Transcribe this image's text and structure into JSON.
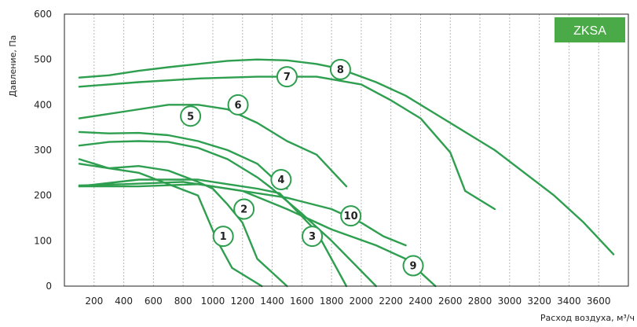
{
  "chart_data": {
    "type": "line",
    "ylabel": "Давление, Па",
    "xlabel": "Расход воздуха, м³/ч",
    "badge": "ZKSA",
    "line_color": "#2e9e4f",
    "badge_color": "#4aaa47",
    "xlim": [
      0,
      3800
    ],
    "ylim": [
      0,
      600
    ],
    "x_ticks": [
      200,
      400,
      600,
      800,
      1000,
      1200,
      1400,
      1600,
      1800,
      2000,
      2200,
      2400,
      2600,
      2800,
      3000,
      3200,
      3400,
      3600
    ],
    "y_ticks": [
      0,
      100,
      200,
      300,
      400,
      500,
      600
    ],
    "grid_vertical": true,
    "series": [
      {
        "name": "1",
        "marker": [
          1070,
          110
        ],
        "points": [
          [
            100,
            270
          ],
          [
            500,
            250
          ],
          [
            900,
            200
          ],
          [
            1030,
            100
          ],
          [
            1130,
            40
          ],
          [
            1330,
            0
          ]
        ]
      },
      {
        "name": "2",
        "marker": [
          1210,
          170
        ],
        "points": [
          [
            100,
            280
          ],
          [
            300,
            260
          ],
          [
            500,
            265
          ],
          [
            700,
            255
          ],
          [
            900,
            230
          ],
          [
            1000,
            215
          ],
          [
            1100,
            180
          ],
          [
            1200,
            140
          ],
          [
            1300,
            60
          ],
          [
            1500,
            0
          ]
        ]
      },
      {
        "name": "3",
        "marker": [
          1670,
          110
        ],
        "points": [
          [
            100,
            220
          ],
          [
            500,
            235
          ],
          [
            900,
            235
          ],
          [
            1100,
            225
          ],
          [
            1300,
            215
          ],
          [
            1450,
            205
          ],
          [
            1700,
            120
          ],
          [
            1900,
            0
          ]
        ]
      },
      {
        "name": "4",
        "marker": [
          1460,
          235
        ],
        "points": [
          [
            100,
            310
          ],
          [
            300,
            318
          ],
          [
            500,
            320
          ],
          [
            700,
            318
          ],
          [
            900,
            305
          ],
          [
            1100,
            280
          ],
          [
            1300,
            240
          ],
          [
            1400,
            215
          ],
          [
            1600,
            160
          ],
          [
            1800,
            100
          ],
          [
            2100,
            0
          ]
        ]
      },
      {
        "name": "5",
        "marker": [
          850,
          375
        ],
        "points": [
          [
            100,
            370
          ],
          [
            400,
            385
          ],
          [
            700,
            400
          ],
          [
            900,
            400
          ],
          [
            1100,
            390
          ],
          [
            1300,
            360
          ],
          [
            1500,
            320
          ],
          [
            1700,
            290
          ],
          [
            1900,
            220
          ]
        ]
      },
      {
        "name": "6",
        "marker": [
          1170,
          400
        ],
        "points": [
          [
            100,
            340
          ],
          [
            300,
            337
          ],
          [
            500,
            338
          ],
          [
            700,
            333
          ],
          [
            900,
            320
          ],
          [
            1100,
            300
          ],
          [
            1300,
            270
          ],
          [
            1400,
            240
          ],
          [
            1500,
            215
          ]
        ]
      },
      {
        "name": "7",
        "marker": [
          1500,
          462
        ],
        "points": [
          [
            100,
            440
          ],
          [
            500,
            450
          ],
          [
            900,
            458
          ],
          [
            1300,
            462
          ],
          [
            1700,
            462
          ],
          [
            2000,
            445
          ],
          [
            2200,
            410
          ],
          [
            2400,
            370
          ],
          [
            2600,
            295
          ],
          [
            2700,
            210
          ],
          [
            2900,
            170
          ]
        ]
      },
      {
        "name": "8",
        "marker": [
          1860,
          478
        ],
        "points": [
          [
            100,
            460
          ],
          [
            300,
            465
          ],
          [
            500,
            475
          ],
          [
            700,
            483
          ],
          [
            900,
            490
          ],
          [
            1100,
            497
          ],
          [
            1300,
            500
          ],
          [
            1500,
            498
          ],
          [
            1700,
            490
          ],
          [
            1850,
            480
          ],
          [
            2100,
            450
          ],
          [
            2300,
            420
          ],
          [
            2600,
            360
          ],
          [
            2900,
            300
          ],
          [
            3300,
            200
          ],
          [
            3500,
            140
          ],
          [
            3700,
            70
          ]
        ]
      },
      {
        "name": "9",
        "marker": [
          2350,
          45
        ],
        "points": [
          [
            100,
            220
          ],
          [
            500,
            220
          ],
          [
            900,
            225
          ],
          [
            1200,
            210
          ],
          [
            1500,
            170
          ],
          [
            1800,
            125
          ],
          [
            2100,
            90
          ],
          [
            2300,
            60
          ],
          [
            2500,
            0
          ]
        ]
      },
      {
        "name": "10",
        "marker": [
          1930,
          155
        ],
        "points": [
          [
            100,
            222
          ],
          [
            400,
            225
          ],
          [
            800,
            230
          ],
          [
            1100,
            215
          ],
          [
            1500,
            195
          ],
          [
            1800,
            170
          ],
          [
            2000,
            140
          ],
          [
            2150,
            110
          ],
          [
            2300,
            90
          ]
        ]
      }
    ]
  }
}
